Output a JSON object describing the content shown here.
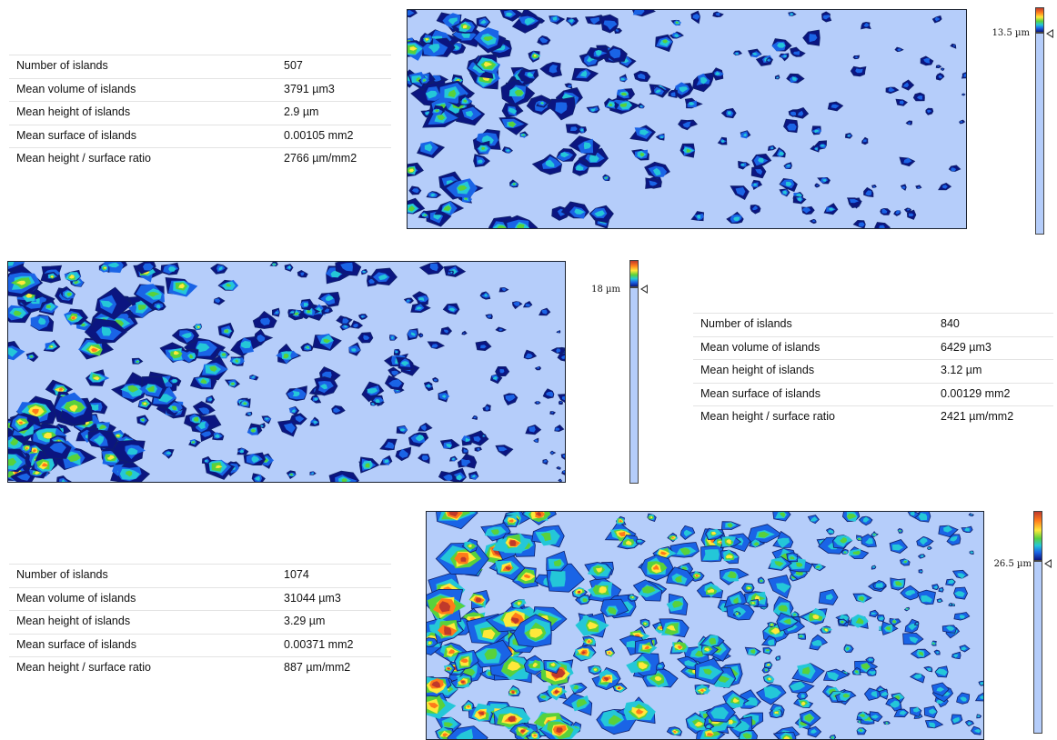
{
  "panels": [
    {
      "stats": [
        {
          "label": "Number of islands",
          "value": "507"
        },
        {
          "label": "Mean volume of islands",
          "value": "3791 µm3"
        },
        {
          "label": "Mean height of islands",
          "value": "2.9 µm"
        },
        {
          "label": "Mean surface of islands",
          "value": "0.00105 mm2"
        },
        {
          "label": "Mean height / surface ratio",
          "value": "2766 µm/mm2"
        }
      ],
      "scale_label": "13.5 µm",
      "density": 0.55
    },
    {
      "stats": [
        {
          "label": "Number of islands",
          "value": "840"
        },
        {
          "label": "Mean volume of islands",
          "value": "6429 µm3"
        },
        {
          "label": "Mean height of islands",
          "value": "3.12 µm"
        },
        {
          "label": "Mean surface of islands",
          "value": "0.00129 mm2"
        },
        {
          "label": "Mean height / surface ratio",
          "value": "2421 µm/mm2"
        }
      ],
      "scale_label": "18 µm",
      "density": 0.75
    },
    {
      "stats": [
        {
          "label": "Number of islands",
          "value": "1074"
        },
        {
          "label": "Mean volume of islands",
          "value": "31044 µm3"
        },
        {
          "label": "Mean height of islands",
          "value": "3.29 µm"
        },
        {
          "label": "Mean surface of islands",
          "value": "0.00371 mm2"
        },
        {
          "label": "Mean height / surface ratio",
          "value": "887 µm/mm2"
        }
      ],
      "scale_label": "26.5 µm",
      "density": 1.0
    }
  ],
  "colors": {
    "background": "#b5cdfa",
    "height_scale": [
      "#0b1580",
      "#1a64e6",
      "#24c7d8",
      "#59d13b",
      "#ffe83a",
      "#ff7a1a",
      "#c0392b"
    ]
  }
}
